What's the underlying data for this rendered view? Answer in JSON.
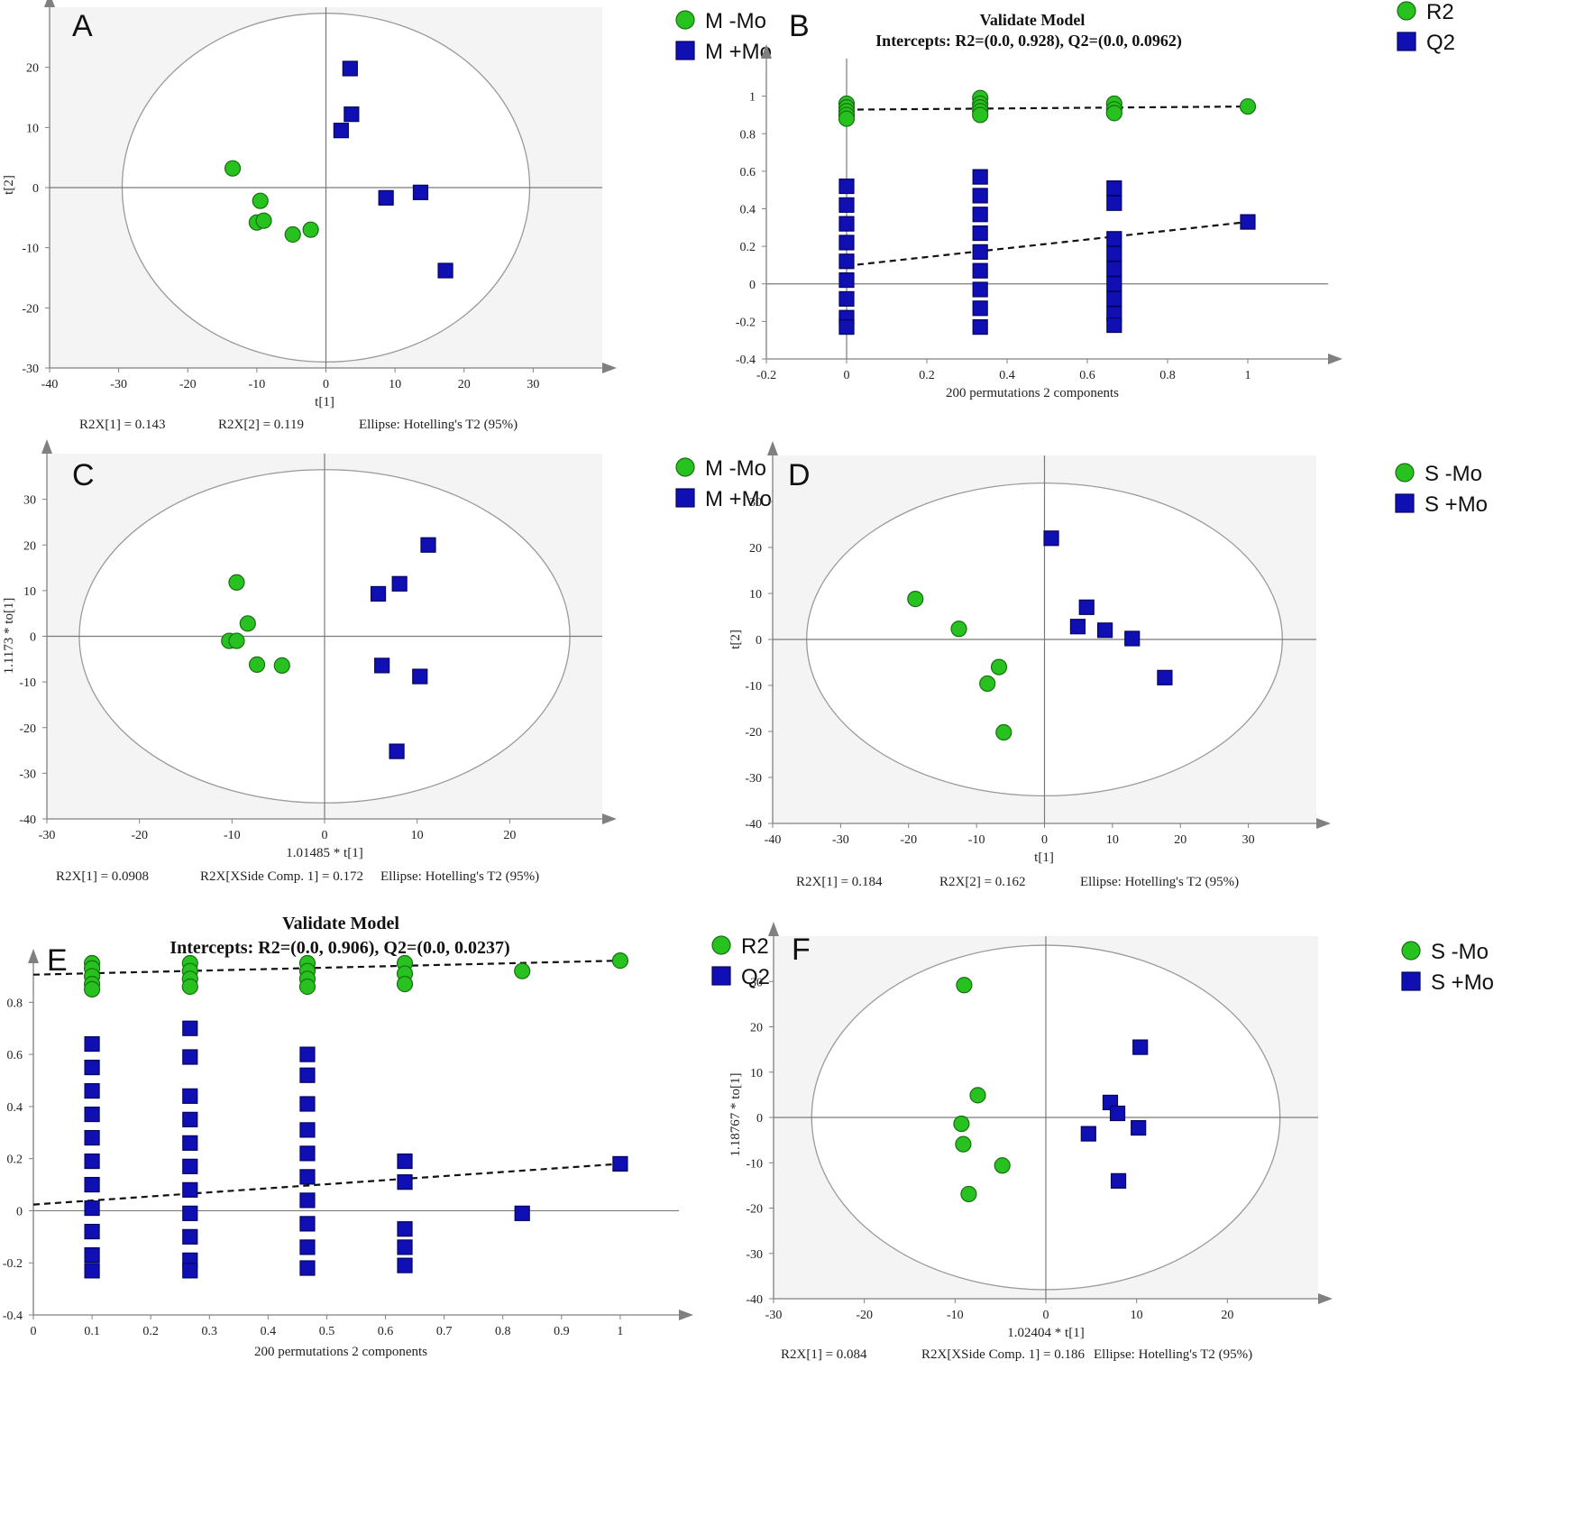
{
  "colors": {
    "green": "#27c21f",
    "blue": "#0f0fb3",
    "plot_bg": "#f4f4f4",
    "axis": "#808080"
  },
  "chart_data": [
    {
      "id": "A",
      "type": "scatter",
      "panel_label": "A",
      "xlabel": "t[1]",
      "ylabel": "t[2]",
      "xlim": [
        -40,
        40
      ],
      "ylim": [
        -30,
        30
      ],
      "xticks": [
        -40,
        -30,
        -20,
        -10,
        0,
        10,
        20,
        30
      ],
      "yticks": [
        -30,
        -20,
        -10,
        0,
        10,
        20
      ],
      "ellipse": {
        "rx": 29.5,
        "ry": 29
      },
      "series": [
        {
          "name": "M -Mo",
          "marker": "circle",
          "points": [
            [
              -13.5,
              3.2
            ],
            [
              -9.5,
              -2.2
            ],
            [
              -10,
              -5.8
            ],
            [
              -9,
              -5.5
            ],
            [
              -4.8,
              -7.8
            ],
            [
              -2.2,
              -7
            ]
          ]
        },
        {
          "name": "M +Mo",
          "marker": "square",
          "points": [
            [
              3.5,
              19.8
            ],
            [
              3.7,
              12.2
            ],
            [
              2.2,
              9.5
            ],
            [
              8.7,
              -1.7
            ],
            [
              13.7,
              -0.8
            ],
            [
              17.3,
              -13.8
            ]
          ]
        }
      ],
      "footer": [
        "R2X[1] = 0.143",
        "R2X[2] = 0.119",
        "Ellipse: Hotelling's T2 (95%)"
      ]
    },
    {
      "id": "B",
      "type": "scatter",
      "panel_label": "B",
      "title": "Validate Model",
      "subtitle": "Intercepts: R2=(0.0, 0.928), Q2=(0.0, 0.0962)",
      "xlabel": "200 permutations 2 components",
      "ylabel": "",
      "xlim": [
        -0.2,
        1.2
      ],
      "ylim": [
        -0.4,
        1.2
      ],
      "xticks": [
        -0.2,
        0,
        0.2,
        0.4,
        0.6,
        0.8,
        1
      ],
      "yticks": [
        -0.4,
        -0.2,
        0,
        0.2,
        0.4,
        0.6,
        0.8,
        1
      ],
      "series": [
        {
          "name": "R2",
          "marker": "circle",
          "points": [
            [
              0,
              0.96
            ],
            [
              0,
              0.94
            ],
            [
              0,
              0.92
            ],
            [
              0,
              0.9
            ],
            [
              0,
              0.88
            ],
            [
              0.333,
              0.99
            ],
            [
              0.333,
              0.96
            ],
            [
              0.333,
              0.94
            ],
            [
              0.333,
              0.92
            ],
            [
              0.333,
              0.9
            ],
            [
              0.667,
              0.96
            ],
            [
              0.667,
              0.93
            ],
            [
              0.667,
              0.91
            ],
            [
              1,
              0.945
            ]
          ]
        },
        {
          "name": "Q2",
          "marker": "square",
          "points": [
            [
              0,
              0.52
            ],
            [
              0,
              0.42
            ],
            [
              0,
              0.32
            ],
            [
              0,
              0.22
            ],
            [
              0,
              0.12
            ],
            [
              0,
              0.02
            ],
            [
              0,
              -0.08
            ],
            [
              0,
              -0.18
            ],
            [
              0,
              -0.23
            ],
            [
              0.333,
              0.57
            ],
            [
              0.333,
              0.47
            ],
            [
              0.333,
              0.37
            ],
            [
              0.333,
              0.27
            ],
            [
              0.333,
              0.17
            ],
            [
              0.333,
              0.07
            ],
            [
              0.333,
              -0.03
            ],
            [
              0.333,
              -0.13
            ],
            [
              0.333,
              -0.23
            ],
            [
              0.667,
              0.51
            ],
            [
              0.667,
              0.43
            ],
            [
              0.667,
              0.24
            ],
            [
              0.667,
              0.16
            ],
            [
              0.667,
              0.08
            ],
            [
              0.667,
              0
            ],
            [
              0.667,
              -0.08
            ],
            [
              0.667,
              -0.16
            ],
            [
              0.667,
              -0.22
            ],
            [
              1,
              0.33
            ]
          ]
        }
      ],
      "trendlines": [
        {
          "series": "R2",
          "from": [
            0,
            0.928
          ],
          "to": [
            1,
            0.945
          ]
        },
        {
          "series": "Q2",
          "from": [
            0,
            0.0962
          ],
          "to": [
            1,
            0.33
          ]
        }
      ],
      "footer": []
    },
    {
      "id": "C",
      "type": "scatter",
      "panel_label": "C",
      "xlabel": "1.01485 * t[1]",
      "ylabel": "1.1173 * to[1]",
      "xlim": [
        -30,
        30
      ],
      "ylim": [
        -40,
        40
      ],
      "xticks": [
        -30,
        -20,
        -10,
        0,
        10,
        20
      ],
      "yticks": [
        -40,
        -30,
        -20,
        -10,
        0,
        10,
        20,
        30
      ],
      "ellipse": {
        "rx": 26.5,
        "ry": 36.5
      },
      "series": [
        {
          "name": "M -Mo",
          "marker": "circle",
          "points": [
            [
              -9.5,
              11.8
            ],
            [
              -8.3,
              2.8
            ],
            [
              -10.3,
              -1
            ],
            [
              -9.5,
              -1
            ],
            [
              -7.3,
              -6.2
            ],
            [
              -4.6,
              -6.4
            ]
          ]
        },
        {
          "name": "M +Mo",
          "marker": "square",
          "points": [
            [
              11.2,
              20
            ],
            [
              8.1,
              11.5
            ],
            [
              5.8,
              9.3
            ],
            [
              6.2,
              -6.4
            ],
            [
              10.3,
              -8.8
            ],
            [
              7.8,
              -25.2
            ]
          ]
        }
      ],
      "footer": [
        "R2X[1] = 0.0908",
        "R2X[XSide Comp. 1] = 0.172",
        "Ellipse: Hotelling's T2 (95%)"
      ]
    },
    {
      "id": "D",
      "type": "scatter",
      "panel_label": "D",
      "xlabel": "t[1]",
      "ylabel": "t[2]",
      "xlim": [
        -40,
        40
      ],
      "ylim": [
        -40,
        40
      ],
      "xticks": [
        -40,
        -30,
        -20,
        -10,
        0,
        10,
        20,
        30
      ],
      "yticks": [
        -40,
        -30,
        -20,
        -10,
        0,
        10,
        20,
        30
      ],
      "ellipse": {
        "rx": 35,
        "ry": 34
      },
      "series": [
        {
          "name": "S -Mo",
          "marker": "circle",
          "points": [
            [
              -19,
              8.8
            ],
            [
              -12.6,
              2.3
            ],
            [
              -6.7,
              -6
            ],
            [
              -8.4,
              -9.6
            ],
            [
              -6,
              -20.2
            ]
          ]
        },
        {
          "name": "S +Mo",
          "marker": "square",
          "points": [
            [
              1,
              22
            ],
            [
              6.2,
              7
            ],
            [
              4.9,
              2.8
            ],
            [
              8.9,
              2
            ],
            [
              12.9,
              0.2
            ],
            [
              17.7,
              -8.3
            ]
          ]
        }
      ],
      "footer": [
        "R2X[1] = 0.184",
        "R2X[2] = 0.162",
        "Ellipse: Hotelling's T2 (95%)"
      ]
    },
    {
      "id": "E",
      "type": "scatter",
      "panel_label": "E",
      "title": "Validate Model",
      "subtitle": "Intercepts: R2=(0.0, 0.906), Q2=(0.0, 0.0237)",
      "xlabel": "200 permutations 2 components",
      "ylabel": "",
      "xlim": [
        0,
        1.1
      ],
      "ylim": [
        -0.4,
        0.95
      ],
      "xticks": [
        0,
        0.1,
        0.2,
        0.3,
        0.4,
        0.5,
        0.6,
        0.7,
        0.8,
        0.9,
        1
      ],
      "yticks": [
        -0.4,
        -0.2,
        0,
        0.2,
        0.4,
        0.6,
        0.8
      ],
      "series": [
        {
          "name": "R2",
          "marker": "circle",
          "points": [
            [
              0.1,
              0.95
            ],
            [
              0.1,
              0.93
            ],
            [
              0.1,
              0.9
            ],
            [
              0.1,
              0.87
            ],
            [
              0.1,
              0.85
            ],
            [
              0.267,
              0.95
            ],
            [
              0.267,
              0.92
            ],
            [
              0.267,
              0.89
            ],
            [
              0.267,
              0.86
            ],
            [
              0.467,
              0.95
            ],
            [
              0.467,
              0.92
            ],
            [
              0.467,
              0.89
            ],
            [
              0.467,
              0.86
            ],
            [
              0.633,
              0.95
            ],
            [
              0.633,
              0.91
            ],
            [
              0.633,
              0.87
            ],
            [
              0.833,
              0.92
            ],
            [
              1,
              0.96
            ]
          ]
        },
        {
          "name": "Q2",
          "marker": "square",
          "points": [
            [
              0.1,
              0.64
            ],
            [
              0.1,
              0.55
            ],
            [
              0.1,
              0.46
            ],
            [
              0.1,
              0.37
            ],
            [
              0.1,
              0.28
            ],
            [
              0.1,
              0.19
            ],
            [
              0.1,
              0.1
            ],
            [
              0.1,
              0.01
            ],
            [
              0.1,
              -0.08
            ],
            [
              0.1,
              -0.17
            ],
            [
              0.1,
              -0.23
            ],
            [
              0.267,
              0.7
            ],
            [
              0.267,
              0.59
            ],
            [
              0.267,
              0.44
            ],
            [
              0.267,
              0.35
            ],
            [
              0.267,
              0.26
            ],
            [
              0.267,
              0.17
            ],
            [
              0.267,
              0.08
            ],
            [
              0.267,
              -0.01
            ],
            [
              0.267,
              -0.1
            ],
            [
              0.267,
              -0.19
            ],
            [
              0.267,
              -0.23
            ],
            [
              0.467,
              0.6
            ],
            [
              0.467,
              0.52
            ],
            [
              0.467,
              0.41
            ],
            [
              0.467,
              0.31
            ],
            [
              0.467,
              0.22
            ],
            [
              0.467,
              0.13
            ],
            [
              0.467,
              0.04
            ],
            [
              0.467,
              -0.05
            ],
            [
              0.467,
              -0.14
            ],
            [
              0.467,
              -0.22
            ],
            [
              0.633,
              0.19
            ],
            [
              0.633,
              0.11
            ],
            [
              0.633,
              -0.07
            ],
            [
              0.633,
              -0.14
            ],
            [
              0.633,
              -0.21
            ],
            [
              0.833,
              -0.01
            ],
            [
              1,
              0.18
            ]
          ]
        }
      ],
      "trendlines": [
        {
          "series": "R2",
          "from": [
            0,
            0.906
          ],
          "to": [
            1,
            0.96
          ]
        },
        {
          "series": "Q2",
          "from": [
            0,
            0.0237
          ],
          "to": [
            1,
            0.18
          ]
        }
      ],
      "footer": []
    },
    {
      "id": "F",
      "type": "scatter",
      "panel_label": "F",
      "xlabel": "1.02404 * t[1]",
      "ylabel": "1.18767 * to[1]",
      "xlim": [
        -30,
        30
      ],
      "ylim": [
        -40,
        40
      ],
      "xticks": [
        -30,
        -20,
        -10,
        0,
        10,
        20
      ],
      "yticks": [
        -40,
        -30,
        -20,
        -10,
        0,
        10,
        20,
        30
      ],
      "ellipse": {
        "rx": 25.8,
        "ry": 38
      },
      "series": [
        {
          "name": "S -Mo",
          "marker": "circle",
          "points": [
            [
              -9,
              29.2
            ],
            [
              -7.5,
              4.9
            ],
            [
              -9.3,
              -1.4
            ],
            [
              -9.1,
              -5.9
            ],
            [
              -4.8,
              -10.6
            ],
            [
              -8.5,
              -16.9
            ]
          ]
        },
        {
          "name": "S +Mo",
          "marker": "square",
          "points": [
            [
              10.4,
              15.5
            ],
            [
              7.1,
              3.3
            ],
            [
              7.9,
              0.9
            ],
            [
              10.2,
              -2.3
            ],
            [
              4.7,
              -3.6
            ],
            [
              8,
              -14
            ]
          ]
        }
      ],
      "footer": [
        "R2X[1] = 0.084",
        "R2X[XSide Comp. 1] = 0.186",
        "Ellipse: Hotelling's T2 (95%)"
      ]
    }
  ]
}
